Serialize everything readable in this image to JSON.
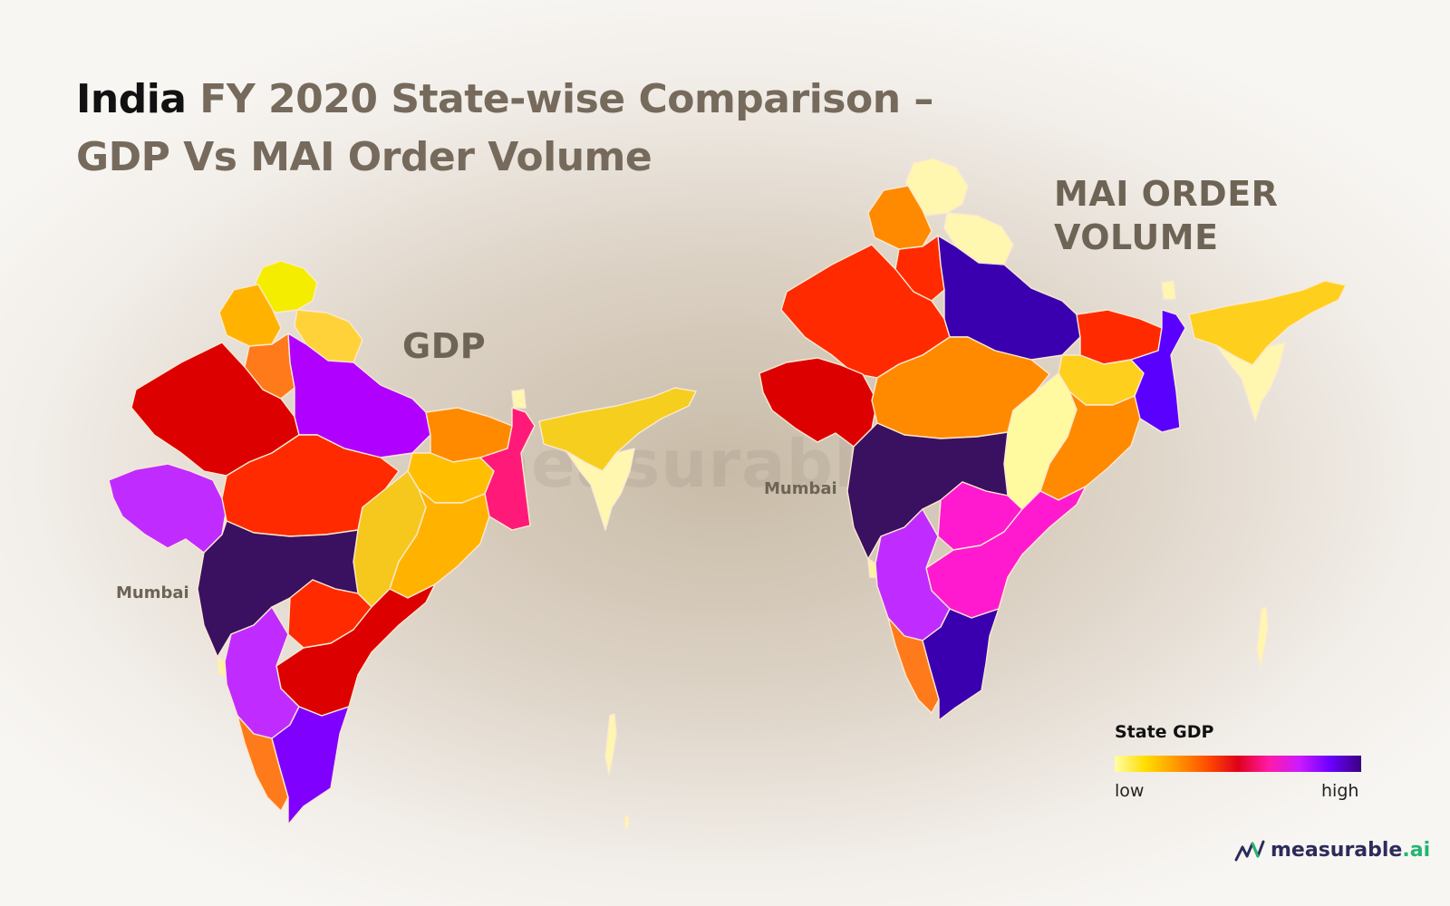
{
  "title": {
    "emphasis": "India",
    "line1": "FY 2020 State-wise Comparison –",
    "line2": "GDP Vs MAI Order Volume"
  },
  "maps": {
    "gdp": {
      "label": "GDP",
      "city_label": "Mumbai"
    },
    "mai": {
      "label_line1": "MAI ORDER",
      "label_line2": "VOLUME",
      "city_label": "Mumbai"
    }
  },
  "legend": {
    "title": "State GDP",
    "low_label": "low",
    "high_label": "high",
    "gradient_colors": [
      "#ffffa6",
      "#ffdd00",
      "#ff9900",
      "#ff4d00",
      "#e0001a",
      "#ff1aa6",
      "#cc1aff",
      "#6a00ff",
      "#3a0080"
    ]
  },
  "watermark": "measurable.ai",
  "logo": {
    "name": "measurable",
    "suffix": ".ai",
    "icon": "measurable-ai-logo-icon"
  },
  "state_colors": {
    "jk": "#f4ed00",
    "himachal": "#ffb300",
    "uttarakhand": "#ffd23a",
    "punjab_haryana": "#ff7a1a",
    "rajasthan": "#dd0000",
    "up": "#b000ff",
    "gujarat": "#c02cff",
    "mp": "#ff2a00",
    "bihar": "#ff8a00",
    "jharkhand": "#ffbf00",
    "wb": "#ff1a7a",
    "chhattisgarh": "#f6c81e",
    "odisha": "#ffb300",
    "maharashtra": "#3a1060",
    "telangana": "#ff2a00",
    "ap": "#dd0000",
    "karnataka": "#c02cff",
    "kerala": "#ff7a1a",
    "tamilnadu": "#8000ff",
    "goa": "#fff3a0",
    "northeast": "#f6ce1e",
    "ne_light": "#fff6b0",
    "sikkim": "#fff6b0",
    "andaman": "#fff6b0"
  },
  "mai_state_colors": {
    "jk": "#fff6b0",
    "himachal": "#ff8a00",
    "uttarakhand": "#fff6b0",
    "punjab_haryana": "#ff2a00",
    "rajasthan": "#ff2a00",
    "up": "#3a00b0",
    "gujarat": "#dd0000",
    "mp": "#ff8a00",
    "bihar": "#ff2a00",
    "jharkhand": "#ffcf1e",
    "wb": "#5a00ff",
    "chhattisgarh": "#fffaa0",
    "odisha": "#ff8a00",
    "maharashtra": "#3a1060",
    "telangana": "#ff1ad0",
    "ap": "#ff1ad0",
    "karnataka": "#c02cff",
    "kerala": "#ff7a1a",
    "tamilnadu": "#3a00b0",
    "goa": "#fff3a0",
    "northeast": "#ffcf1e",
    "ne_light": "#fff6b0",
    "sikkim": "#fff6b0",
    "andaman": "#fff6b0"
  }
}
